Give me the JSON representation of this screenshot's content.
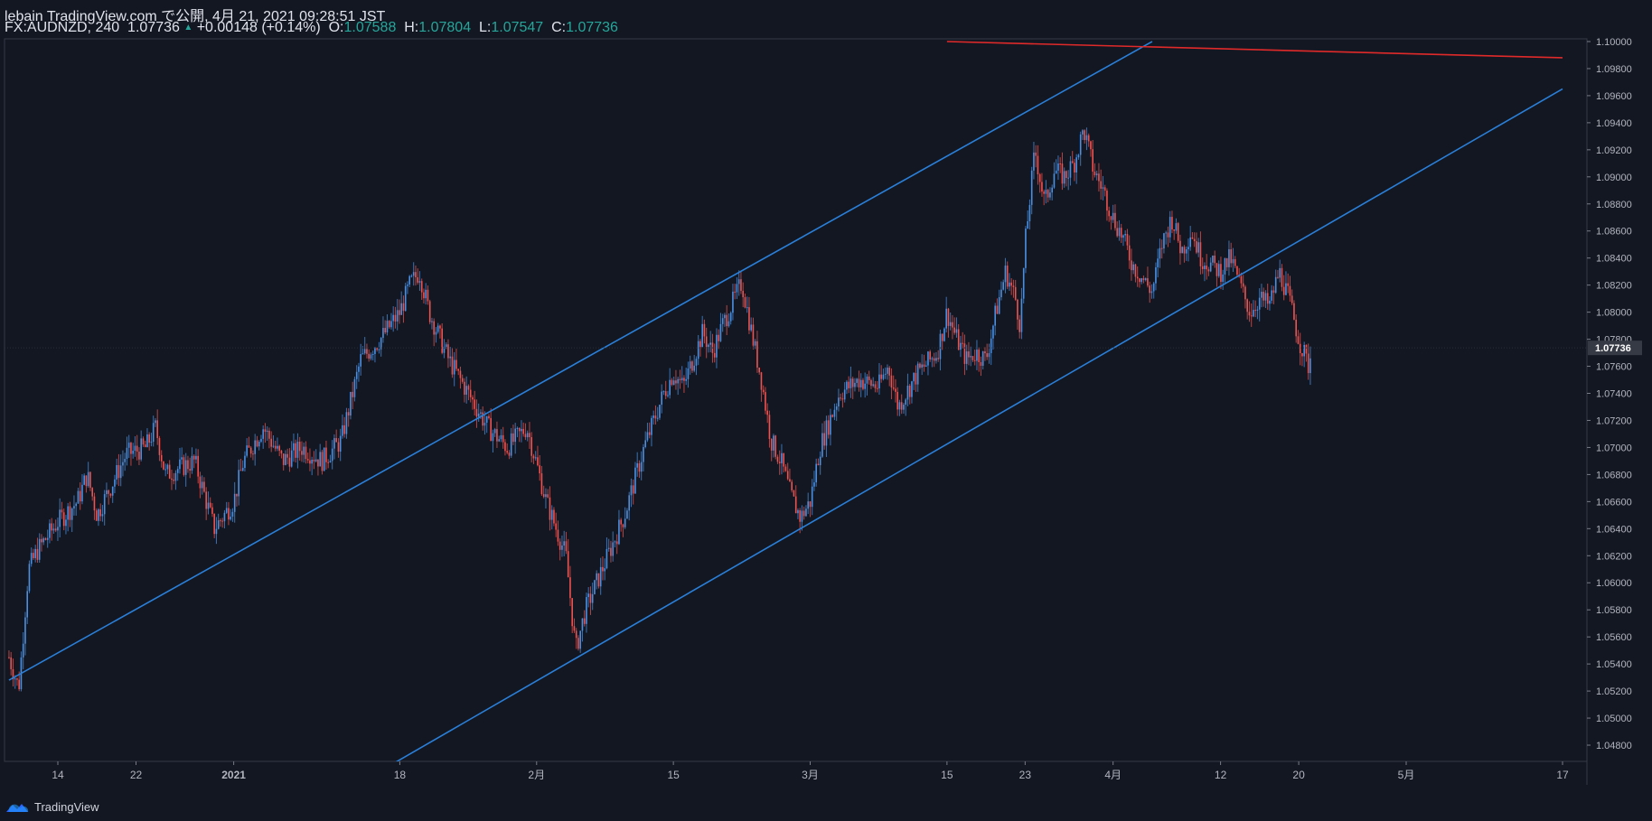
{
  "header": {
    "line1": "lebain TradingView.com で公開, 4月 21, 2021 09:28:51 JST",
    "symbol": "FX:AUDNZD, 240",
    "last": "1.07736",
    "change": "+0.00148 (+0.14%)",
    "o_label": "O:",
    "o_value": "1.07588",
    "h_label": "H:",
    "h_value": "1.07804",
    "l_label": "L:",
    "l_value": "1.07547",
    "c_label": "C:",
    "c_value": "1.07736"
  },
  "footer": {
    "brand": "TradingView",
    "logo_icon": "tradingview-logo-icon"
  },
  "colors": {
    "up": "#4a90e2",
    "down": "#ef5350",
    "trendline": "#2a7fd8",
    "resistance": "#e02a2a",
    "background": "#131722"
  },
  "chart_data": {
    "type": "candlestick",
    "symbol": "FX:AUDNZD",
    "interval": "240",
    "ylim": [
      1.0468,
      1.1002
    ],
    "y_ticks": [
      "1.04800",
      "1.05000",
      "1.05200",
      "1.05400",
      "1.05600",
      "1.05800",
      "1.06000",
      "1.06200",
      "1.06400",
      "1.06600",
      "1.06800",
      "1.07000",
      "1.07200",
      "1.07400",
      "1.07600",
      "1.07800",
      "1.08000",
      "1.08200",
      "1.08400",
      "1.08600",
      "1.08800",
      "1.09000",
      "1.09200",
      "1.09400",
      "1.09600",
      "1.09800",
      "1.10000"
    ],
    "x_ticks": [
      {
        "label": "14",
        "date": "2020-12-14"
      },
      {
        "label": "22",
        "date": "2020-12-22"
      },
      {
        "label": "2021",
        "date": "2021-01-01"
      },
      {
        "label": "18",
        "date": "2021-01-18"
      },
      {
        "label": "2月",
        "date": "2021-02-01"
      },
      {
        "label": "15",
        "date": "2021-02-15"
      },
      {
        "label": "3月",
        "date": "2021-03-01"
      },
      {
        "label": "15",
        "date": "2021-03-15"
      },
      {
        "label": "23",
        "date": "2021-03-23"
      },
      {
        "label": "4月",
        "date": "2021-04-01"
      },
      {
        "label": "12",
        "date": "2021-04-12"
      },
      {
        "label": "20",
        "date": "2021-04-20"
      },
      {
        "label": "5月",
        "date": "2021-05-01"
      },
      {
        "label": "17",
        "date": "2021-05-17"
      }
    ],
    "price_path": [
      [
        "2020-12-09",
        1.0545
      ],
      [
        "2020-12-10",
        1.0522
      ],
      [
        "2020-12-11",
        1.061
      ],
      [
        "2020-12-12",
        1.0625
      ],
      [
        "2020-12-14",
        1.0645
      ],
      [
        "2020-12-16",
        1.066
      ],
      [
        "2020-12-17",
        1.068
      ],
      [
        "2020-12-18",
        1.065
      ],
      [
        "2020-12-21",
        1.0695
      ],
      [
        "2020-12-23",
        1.07
      ],
      [
        "2020-12-24",
        1.0715
      ],
      [
        "2020-12-25",
        1.068
      ],
      [
        "2020-12-28",
        1.069
      ],
      [
        "2020-12-30",
        1.064
      ],
      [
        "2021-01-01",
        1.066
      ],
      [
        "2021-01-02",
        1.069
      ],
      [
        "2021-01-04",
        1.0715
      ],
      [
        "2021-01-06",
        1.069
      ],
      [
        "2021-01-08",
        1.07
      ],
      [
        "2021-01-10",
        1.069
      ],
      [
        "2021-01-12",
        1.0705
      ],
      [
        "2021-01-14",
        1.0765
      ],
      [
        "2021-01-16",
        1.078
      ],
      [
        "2021-01-18",
        1.08
      ],
      [
        "2021-01-19",
        1.082
      ],
      [
        "2021-01-20",
        1.083
      ],
      [
        "2021-01-21",
        1.08
      ],
      [
        "2021-01-23",
        1.0765
      ],
      [
        "2021-01-25",
        1.074
      ],
      [
        "2021-01-27",
        1.0715
      ],
      [
        "2021-01-29",
        1.07
      ],
      [
        "2021-01-31",
        1.0715
      ],
      [
        "2021-02-02",
        1.066
      ],
      [
        "2021-02-03",
        1.064
      ],
      [
        "2021-02-04",
        1.062
      ],
      [
        "2021-02-05",
        1.055
      ],
      [
        "2021-02-06",
        1.058
      ],
      [
        "2021-02-08",
        1.0615
      ],
      [
        "2021-02-10",
        1.065
      ],
      [
        "2021-02-12",
        1.07
      ],
      [
        "2021-02-14",
        1.074
      ],
      [
        "2021-02-15",
        1.0755
      ],
      [
        "2021-02-16",
        1.0745
      ],
      [
        "2021-02-18",
        1.0785
      ],
      [
        "2021-02-19",
        1.077
      ],
      [
        "2021-02-20",
        1.079
      ],
      [
        "2021-02-22",
        1.0822
      ],
      [
        "2021-02-23",
        1.0785
      ],
      [
        "2021-02-24",
        1.075
      ],
      [
        "2021-02-25",
        1.0705
      ],
      [
        "2021-02-26",
        1.069
      ],
      [
        "2021-02-27",
        1.0665
      ],
      [
        "2021-02-28",
        1.0648
      ],
      [
        "2021-03-01",
        1.066
      ],
      [
        "2021-03-02",
        1.07
      ],
      [
        "2021-03-04",
        1.074
      ],
      [
        "2021-03-06",
        1.075
      ],
      [
        "2021-03-08",
        1.0745
      ],
      [
        "2021-03-09",
        1.076
      ],
      [
        "2021-03-10",
        1.073
      ],
      [
        "2021-03-12",
        1.0755
      ],
      [
        "2021-03-14",
        1.077
      ],
      [
        "2021-03-15",
        1.08
      ],
      [
        "2021-03-16",
        1.078
      ],
      [
        "2021-03-17",
        1.0765
      ],
      [
        "2021-03-18",
        1.077
      ],
      [
        "2021-03-19",
        1.0765
      ],
      [
        "2021-03-20",
        1.08
      ],
      [
        "2021-03-21",
        1.083
      ],
      [
        "2021-03-22",
        1.081
      ],
      [
        "2021-03-22T12",
        1.079
      ],
      [
        "2021-03-23",
        1.085
      ],
      [
        "2021-03-24",
        1.092
      ],
      [
        "2021-03-25",
        1.088
      ],
      [
        "2021-03-26",
        1.0905
      ],
      [
        "2021-03-27",
        1.09
      ],
      [
        "2021-03-28",
        1.091
      ],
      [
        "2021-03-29",
        1.0935
      ],
      [
        "2021-03-30",
        1.0905
      ],
      [
        "2021-03-31",
        1.089
      ],
      [
        "2021-04-01",
        1.087
      ],
      [
        "2021-04-02",
        1.0855
      ],
      [
        "2021-04-03",
        1.0835
      ],
      [
        "2021-04-05",
        1.0815
      ],
      [
        "2021-04-06",
        1.085
      ],
      [
        "2021-04-07",
        1.087
      ],
      [
        "2021-04-08",
        1.0845
      ],
      [
        "2021-04-09",
        1.086
      ],
      [
        "2021-04-10",
        1.084
      ],
      [
        "2021-04-12",
        1.083
      ],
      [
        "2021-04-13",
        1.084
      ],
      [
        "2021-04-14",
        1.082
      ],
      [
        "2021-04-15",
        1.08
      ],
      [
        "2021-04-16",
        1.081
      ],
      [
        "2021-04-17",
        1.0805
      ],
      [
        "2021-04-18",
        1.083
      ],
      [
        "2021-04-19",
        1.081
      ],
      [
        "2021-04-20",
        1.078
      ],
      [
        "2021-04-21",
        1.076
      ],
      [
        "2021-04-21T09",
        1.07736
      ]
    ],
    "trendlines": [
      {
        "name": "channel-upper",
        "color": "#2a7fd8",
        "points": [
          [
            "2020-12-09",
            1.0528
          ],
          [
            "2021-04-05",
            1.1
          ]
        ]
      },
      {
        "name": "channel-lower",
        "color": "#2a7fd8",
        "points": [
          [
            "2021-01-17",
            1.0465
          ],
          [
            "2021-05-17",
            1.0965
          ]
        ]
      },
      {
        "name": "resistance",
        "color": "#e02a2a",
        "points": [
          [
            "2021-03-15",
            1.1
          ],
          [
            "2021-05-17",
            1.0988
          ]
        ]
      }
    ],
    "last_price": "1.07736",
    "grid": false,
    "legend": "none"
  }
}
